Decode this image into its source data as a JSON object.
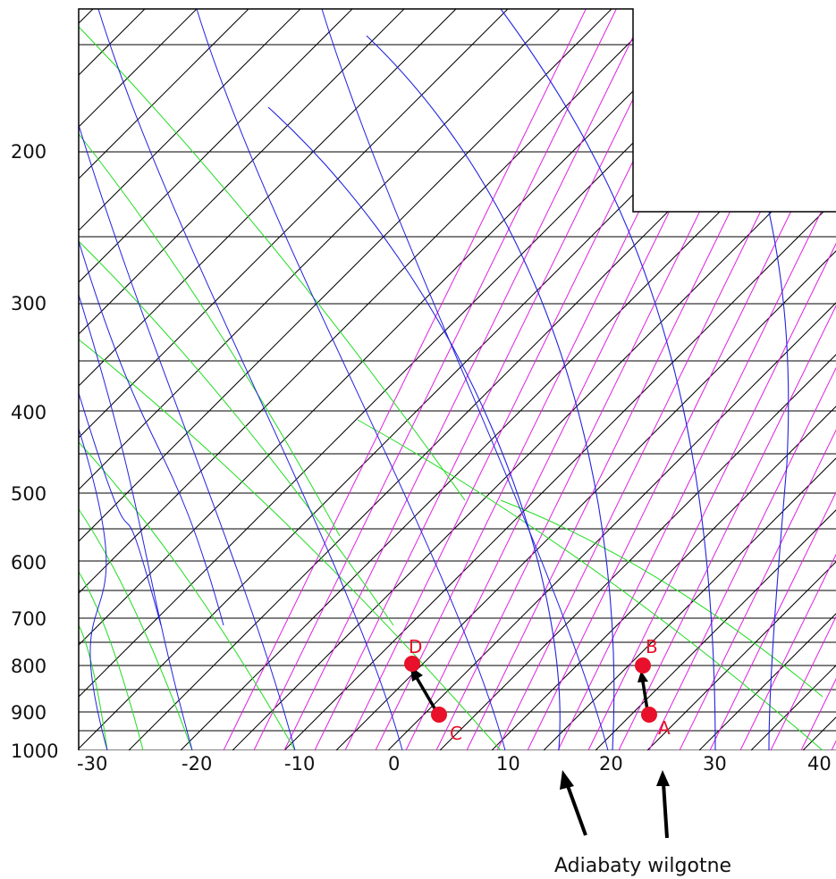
{
  "pressure_labels": [
    "200",
    "300",
    "400",
    "500",
    "600",
    "700",
    "800",
    "900",
    "1000"
  ],
  "temperature_labels": [
    "-30",
    "-20",
    "-10",
    "0",
    "10",
    "20",
    "30",
    "40"
  ],
  "points": [
    {
      "name": "A",
      "label": "A"
    },
    {
      "name": "B",
      "label": "B"
    },
    {
      "name": "C",
      "label": "C"
    },
    {
      "name": "D",
      "label": "D"
    }
  ],
  "caption": "Adiabaty wilgotne",
  "colors": {
    "isobar": "#000000",
    "isotherm": "#000000",
    "dry_adiabat": "#2222e0",
    "moist_adiabat": "#2222e0",
    "mixing_ratio_magenta": "#e020e0",
    "mixing_ratio_green": "#22dd22",
    "point": "#e8102a",
    "arrow": "#000000"
  }
}
